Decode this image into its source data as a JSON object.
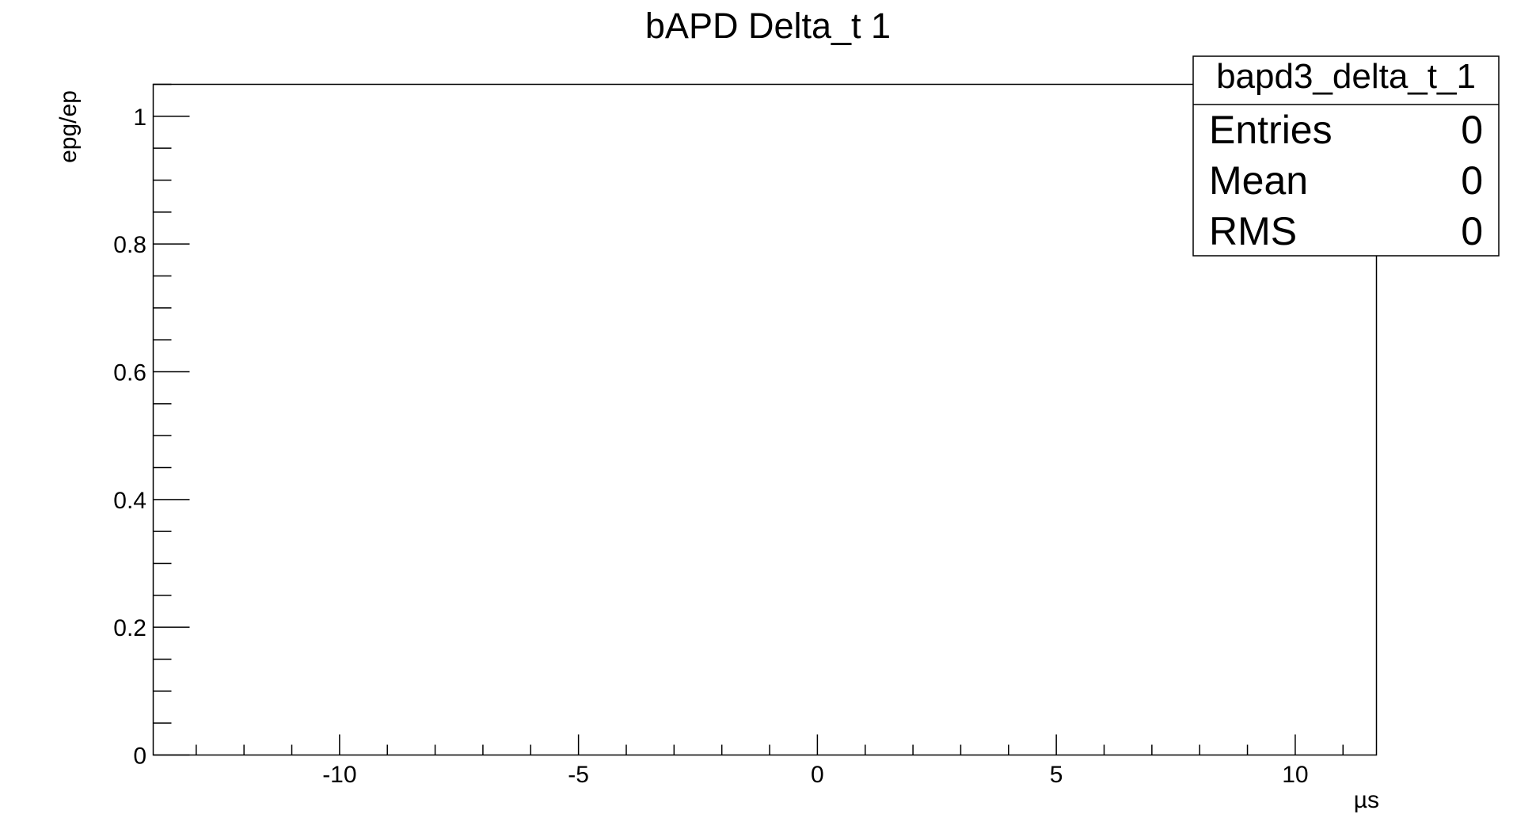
{
  "chart_data": {
    "type": "bar",
    "title": "bAPD Delta_t 1",
    "xlabel": "µs",
    "ylabel": "epg/ep",
    "xlim": [
      -13.9,
      11.7
    ],
    "ylim": [
      0,
      1.05
    ],
    "x_major_ticks": [
      -10,
      -5,
      0,
      5,
      10
    ],
    "x_tick_labels": [
      "-10",
      "-5",
      "0",
      "5",
      "10"
    ],
    "x_minor_step": 1,
    "y_major_ticks": [
      0,
      0.2,
      0.4,
      0.6,
      0.8,
      1
    ],
    "y_tick_labels": [
      "0",
      "0.2",
      "0.4",
      "0.6",
      "0.8",
      "1"
    ],
    "y_minor_step": 0.05,
    "grid": false,
    "legend": "none",
    "series": [],
    "stats_box": {
      "placement": "top-right",
      "name": "bapd3_delta_t_1",
      "rows": [
        {
          "label": "Entries",
          "value": "0"
        },
        {
          "label": "Mean",
          "value": "0"
        },
        {
          "label": "RMS",
          "value": "0"
        }
      ]
    }
  }
}
